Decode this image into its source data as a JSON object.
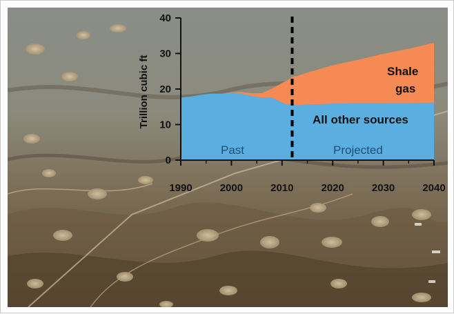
{
  "chart_data": {
    "type": "area",
    "title": "",
    "xlabel": "",
    "ylabel": "Trillion cubic ft",
    "xlim": [
      1990,
      2040
    ],
    "ylim": [
      0,
      40
    ],
    "x_ticks": [
      1990,
      2000,
      2010,
      2020,
      2030,
      2040
    ],
    "y_ticks": [
      0,
      10,
      20,
      30,
      40
    ],
    "divider_year": 2012,
    "stacked": true,
    "series": [
      {
        "name": "All other sources",
        "color": "#5aaee0",
        "points": [
          [
            1990,
            17.6
          ],
          [
            1992,
            17.9
          ],
          [
            1994,
            18.4
          ],
          [
            1996,
            18.7
          ],
          [
            1998,
            18.7
          ],
          [
            2000,
            19.0
          ],
          [
            2002,
            18.7
          ],
          [
            2004,
            18.0
          ],
          [
            2006,
            17.6
          ],
          [
            2008,
            17.6
          ],
          [
            2009,
            16.9
          ],
          [
            2010,
            16.2
          ],
          [
            2011,
            15.6
          ],
          [
            2012,
            16.0
          ],
          [
            2013,
            15.4
          ],
          [
            2015,
            15.6
          ],
          [
            2020,
            15.9
          ],
          [
            2025,
            16.0
          ],
          [
            2030,
            16.1
          ],
          [
            2035,
            16.1
          ],
          [
            2040,
            16.2
          ]
        ]
      },
      {
        "name": "Shale gas",
        "color": "#f58a55",
        "points": [
          [
            1990,
            0.0
          ],
          [
            1998,
            0.0
          ],
          [
            2000,
            0.1
          ],
          [
            2004,
            0.8
          ],
          [
            2006,
            1.2
          ],
          [
            2008,
            2.5
          ],
          [
            2009,
            4.0
          ],
          [
            2010,
            5.5
          ],
          [
            2011,
            6.8
          ],
          [
            2012,
            7.4
          ],
          [
            2013,
            8.3
          ],
          [
            2015,
            9.0
          ],
          [
            2020,
            10.8
          ],
          [
            2025,
            12.2
          ],
          [
            2030,
            13.8
          ],
          [
            2035,
            15.2
          ],
          [
            2040,
            16.8
          ]
        ]
      }
    ],
    "labels": {
      "shale_line1": "Shale",
      "shale_line2": "gas",
      "other": "All other sources",
      "past": "Past",
      "projected": "Projected"
    },
    "background": "aerial photograph of terrain with gas well pads"
  }
}
